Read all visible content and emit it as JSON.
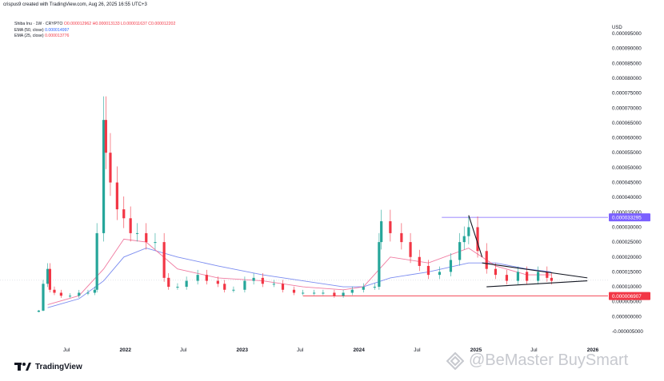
{
  "header": {
    "credit": "crispus9 created with TradingView.com, Aug 26, 2025 16:55 UTC+3"
  },
  "legend": {
    "title": "Shiba Inu · 1W · CRYPTO",
    "ohlc": "O0.000012962 H0.000013133 L0.000011637 C0.000012202",
    "ema50_label": "EMA (50, close)",
    "ema50_value": "0.000014997",
    "ema25_label": "EMA (25, close)",
    "ema25_value": "0.000013776"
  },
  "footer": {
    "logo_text": "TradingView"
  },
  "watermark": {
    "text": "@BeMaster BuySmart"
  },
  "colors": {
    "up": "#26a69a",
    "down": "#f23645",
    "ema50": "#7b8cf0",
    "ema25": "#f07aa0",
    "resistance": "#7b61ff",
    "support": "#f23645"
  },
  "chart_data": {
    "type": "line",
    "title": "Shiba Inu · 1W · CRYPTO",
    "ylabel": "USD",
    "xlabel": "",
    "ylim": [
      -5e-06,
      9.5e-05
    ],
    "ytick_labels": [
      "0.000095000",
      "0.000090000",
      "0.000085000",
      "0.000080000",
      "0.000075000",
      "0.000070000",
      "0.000065000",
      "0.000060000",
      "0.000055000",
      "0.000050000",
      "0.000045000",
      "0.000040000",
      "0.000035000",
      "0.000030000",
      "0.000025000",
      "0.000020000",
      "0.000015000",
      "0.000010000",
      "0.000005000",
      "0.000000000",
      "-0.000005000"
    ],
    "ytick_values": [
      9.5e-05,
      9e-05,
      8.5e-05,
      8e-05,
      7.5e-05,
      7e-05,
      6.5e-05,
      6e-05,
      5.5e-05,
      5e-05,
      4.5e-05,
      4e-05,
      3.5e-05,
      3e-05,
      2.5e-05,
      2e-05,
      1.5e-05,
      1e-05,
      5e-06,
      0,
      -5e-06
    ],
    "xtick_labels": [
      "Jul",
      "2022",
      "Jul",
      "2023",
      "Jul",
      "2024",
      "Jul",
      "2025",
      "Jul",
      "2026"
    ],
    "xtick_values": [
      "2021-07-01",
      "2022-01-01",
      "2022-07-01",
      "2023-01-01",
      "2023-07-01",
      "2024-01-01",
      "2024-07-01",
      "2025-01-01",
      "2025-07-01",
      "2026-01-01"
    ],
    "price_labels": [
      {
        "text": "0.000033295",
        "value": 3.3295e-05,
        "color": "#7b61ff"
      },
      {
        "text": "0.000006907",
        "value": 6.907e-06,
        "color": "#f23645"
      }
    ],
    "series": [
      {
        "name": "Shiba Inu",
        "x": [
          "2021-04-05",
          "2021-04-19",
          "2021-05-03",
          "2021-05-10",
          "2021-05-24",
          "2021-06-14",
          "2021-07-12",
          "2021-08-09",
          "2021-09-06",
          "2021-09-27",
          "2021-10-04",
          "2021-10-25",
          "2021-11-01",
          "2021-11-15",
          "2021-12-06",
          "2021-12-27",
          "2022-01-17",
          "2022-02-07",
          "2022-03-07",
          "2022-04-04",
          "2022-05-02",
          "2022-05-16",
          "2022-06-13",
          "2022-07-11",
          "2022-08-15",
          "2022-09-12",
          "2022-10-17",
          "2022-11-07",
          "2022-12-05",
          "2023-01-09",
          "2023-02-06",
          "2023-03-06",
          "2023-04-10",
          "2023-05-08",
          "2023-06-12",
          "2023-07-10",
          "2023-08-14",
          "2023-09-11",
          "2023-10-16",
          "2023-11-13",
          "2023-12-11",
          "2024-01-15",
          "2024-02-19",
          "2024-03-04",
          "2024-03-11",
          "2024-04-08",
          "2024-05-13",
          "2024-06-10",
          "2024-07-08",
          "2024-08-05",
          "2024-09-09",
          "2024-10-14",
          "2024-11-11",
          "2024-11-25",
          "2024-12-09",
          "2025-01-06",
          "2025-02-03",
          "2025-03-03",
          "2025-04-07",
          "2025-05-12",
          "2025-06-09",
          "2025-07-14",
          "2025-08-11",
          "2025-08-25"
        ],
        "values": [
          2e-06,
          1.1e-05,
          1.6e-05,
          9e-06,
          8e-06,
          7e-06,
          7e-06,
          8e-06,
          8e-06,
          9e-06,
          2.8e-05,
          6.6e-05,
          5.5e-05,
          4.5e-05,
          3.6e-05,
          3.3e-05,
          2.8e-05,
          2.8e-05,
          2.5e-05,
          2.5e-05,
          1.3e-05,
          1e-05,
          1e-05,
          1.2e-05,
          1.4e-05,
          1.2e-05,
          1.1e-05,
          9e-06,
          9e-06,
          1.2e-05,
          1.3e-05,
          1.1e-05,
          1.1e-05,
          9e-06,
          8e-06,
          8e-06,
          8e-06,
          8e-06,
          7e-06,
          8e-06,
          9e-06,
          1e-05,
          1e-05,
          2.5e-05,
          3.2e-05,
          2.8e-05,
          2.5e-05,
          2e-05,
          1.7e-05,
          1.4e-05,
          1.5e-05,
          1.9e-05,
          2.5e-05,
          2.7e-05,
          3e-05,
          2.2e-05,
          1.6e-05,
          1.4e-05,
          1.2e-05,
          1.5e-05,
          1.2e-05,
          1.5e-05,
          1.3e-05,
          1.2e-05
        ]
      },
      {
        "name": "EMA (50, close)",
        "x": [
          "2021-05-03",
          "2021-08-09",
          "2021-10-25",
          "2021-12-27",
          "2022-03-07",
          "2022-06-13",
          "2022-10-17",
          "2023-03-06",
          "2023-07-10",
          "2023-11-13",
          "2024-01-15",
          "2024-04-08",
          "2024-08-05",
          "2024-12-09",
          "2025-03-03",
          "2025-06-09",
          "2025-08-25"
        ],
        "values": [
          3e-06,
          6e-06,
          1.2e-05,
          2e-05,
          2.3e-05,
          2e-05,
          1.7e-05,
          1.4e-05,
          1.2e-05,
          1e-05,
          1e-05,
          1.3e-05,
          1.5e-05,
          1.8e-05,
          1.8e-05,
          1.6e-05,
          1.5e-05
        ]
      },
      {
        "name": "EMA (25, close)",
        "x": [
          "2021-05-03",
          "2021-08-09",
          "2021-10-25",
          "2021-12-27",
          "2022-03-07",
          "2022-06-13",
          "2022-10-17",
          "2023-03-06",
          "2023-07-10",
          "2023-11-13",
          "2024-01-15",
          "2024-04-08",
          "2024-08-05",
          "2024-12-09",
          "2025-03-03",
          "2025-06-09",
          "2025-08-25"
        ],
        "values": [
          4e-06,
          7e-06,
          1.6e-05,
          2.6e-05,
          2.5e-05,
          1.6e-05,
          1.3e-05,
          1.2e-05,
          1e-05,
          9e-06,
          1e-05,
          2e-05,
          1.8e-05,
          2.3e-05,
          1.7e-05,
          1.4e-05,
          1.4e-05
        ]
      }
    ],
    "horizontal_lines": [
      {
        "value": 3.3295e-05,
        "from": "2024-09-16",
        "color": "#7b61ff"
      },
      {
        "value": 6.907e-06,
        "from": "2023-07-10",
        "color": "#f23645"
      }
    ],
    "trendlines": [
      {
        "from": [
          "2024-12-09",
          3.4e-05
        ],
        "to": [
          "2025-01-20",
          2e-05
        ]
      },
      {
        "from": [
          "2025-01-20",
          1.8e-05
        ],
        "to": [
          "2025-12-15",
          1.3e-05
        ]
      },
      {
        "from": [
          "2025-02-03",
          1e-05
        ],
        "to": [
          "2025-12-15",
          1.2e-05
        ]
      }
    ],
    "grid": false,
    "legend_position": "top-left"
  }
}
